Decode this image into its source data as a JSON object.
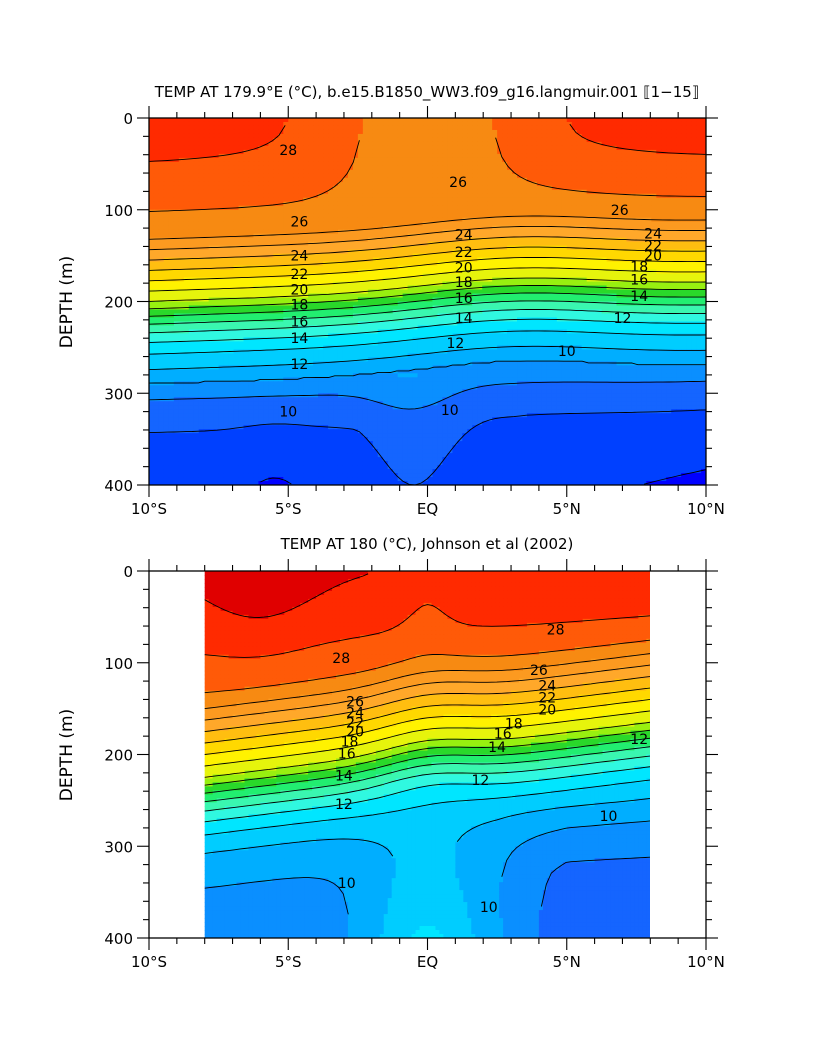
{
  "chart_data": [
    {
      "type": "contour",
      "title": "TEMP AT 179.9°E (°C), b.e15.B1850_WW3.f09_g16.langmuir.001 ⟦1−15⟧",
      "ylabel": "DEPTH (m)",
      "xlabel": "",
      "x_ticks": [
        "10°S",
        "5°S",
        "EQ",
        "5°N",
        "10°N"
      ],
      "y_ticks": [
        "0",
        "100",
        "200",
        "300",
        "400"
      ],
      "xlim": [
        -10,
        10
      ],
      "ylim": [
        400,
        0
      ],
      "data_xlim": [
        -10,
        10
      ],
      "levels": [
        8,
        9,
        10,
        11,
        12,
        13,
        14,
        15,
        16,
        17,
        18,
        19,
        20,
        21,
        22,
        23,
        24,
        25,
        26,
        27,
        28
      ],
      "contour_labels": [
        {
          "text": "28",
          "x": -5.0,
          "y": 35
        },
        {
          "text": "26",
          "x": 1.1,
          "y": 70
        },
        {
          "text": "26",
          "x": -4.6,
          "y": 113
        },
        {
          "text": "26",
          "x": 6.9,
          "y": 100
        },
        {
          "text": "24",
          "x": 1.3,
          "y": 127
        },
        {
          "text": "24",
          "x": 8.1,
          "y": 126
        },
        {
          "text": "24",
          "x": -4.6,
          "y": 150
        },
        {
          "text": "22",
          "x": 1.3,
          "y": 146
        },
        {
          "text": "22",
          "x": 8.1,
          "y": 139
        },
        {
          "text": "22",
          "x": -4.6,
          "y": 170
        },
        {
          "text": "20",
          "x": 1.3,
          "y": 163
        },
        {
          "text": "20",
          "x": 8.1,
          "y": 150
        },
        {
          "text": "20",
          "x": -4.6,
          "y": 187
        },
        {
          "text": "18",
          "x": 1.3,
          "y": 179
        },
        {
          "text": "18",
          "x": 7.6,
          "y": 162
        },
        {
          "text": "18",
          "x": -4.6,
          "y": 203
        },
        {
          "text": "16",
          "x": 1.3,
          "y": 196
        },
        {
          "text": "16",
          "x": 7.6,
          "y": 176
        },
        {
          "text": "16",
          "x": -4.6,
          "y": 222
        },
        {
          "text": "14",
          "x": 1.3,
          "y": 218
        },
        {
          "text": "14",
          "x": 7.6,
          "y": 194
        },
        {
          "text": "14",
          "x": -4.6,
          "y": 240
        },
        {
          "text": "12",
          "x": 7.0,
          "y": 218
        },
        {
          "text": "12",
          "x": 1.0,
          "y": 245
        },
        {
          "text": "12",
          "x": -4.6,
          "y": 268
        },
        {
          "text": "10",
          "x": 5.0,
          "y": 254
        },
        {
          "text": "10",
          "x": 0.8,
          "y": 318
        },
        {
          "text": "10",
          "x": -5.0,
          "y": 320
        }
      ]
    },
    {
      "type": "contour",
      "title": "TEMP AT 180 (°C), Johnson et al (2002)",
      "ylabel": "DEPTH (m)",
      "xlabel": "",
      "x_ticks": [
        "10°S",
        "5°S",
        "EQ",
        "5°N",
        "10°N"
      ],
      "y_ticks": [
        "0",
        "100",
        "200",
        "300",
        "400"
      ],
      "xlim": [
        -10,
        10
      ],
      "ylim": [
        400,
        0
      ],
      "data_xlim": [
        -8,
        8
      ],
      "levels": [
        8,
        9,
        10,
        11,
        12,
        13,
        14,
        15,
        16,
        17,
        18,
        19,
        20,
        21,
        22,
        23,
        24,
        25,
        26,
        27,
        28,
        29
      ],
      "contour_labels": [
        {
          "text": "28",
          "x": 4.6,
          "y": 64
        },
        {
          "text": "28",
          "x": -3.1,
          "y": 95
        },
        {
          "text": "26",
          "x": 4.0,
          "y": 108
        },
        {
          "text": "24",
          "x": 4.3,
          "y": 125
        },
        {
          "text": "26",
          "x": -2.6,
          "y": 142
        },
        {
          "text": "22",
          "x": 4.3,
          "y": 138
        },
        {
          "text": "24",
          "x": -2.6,
          "y": 154
        },
        {
          "text": "20",
          "x": 4.3,
          "y": 151
        },
        {
          "text": "22",
          "x": -2.6,
          "y": 165
        },
        {
          "text": "18",
          "x": 3.1,
          "y": 166
        },
        {
          "text": "20",
          "x": -2.6,
          "y": 175
        },
        {
          "text": "16",
          "x": 2.7,
          "y": 177
        },
        {
          "text": "18",
          "x": -2.8,
          "y": 186
        },
        {
          "text": "14",
          "x": 2.5,
          "y": 192
        },
        {
          "text": "16",
          "x": -2.9,
          "y": 199
        },
        {
          "text": "12",
          "x": 7.6,
          "y": 183
        },
        {
          "text": "14",
          "x": -3.0,
          "y": 223
        },
        {
          "text": "12",
          "x": 1.9,
          "y": 228
        },
        {
          "text": "12",
          "x": -3.0,
          "y": 254
        },
        {
          "text": "10",
          "x": 6.5,
          "y": 267
        },
        {
          "text": "10",
          "x": -2.9,
          "y": 340
        },
        {
          "text": "10",
          "x": 2.2,
          "y": 366
        }
      ]
    }
  ]
}
